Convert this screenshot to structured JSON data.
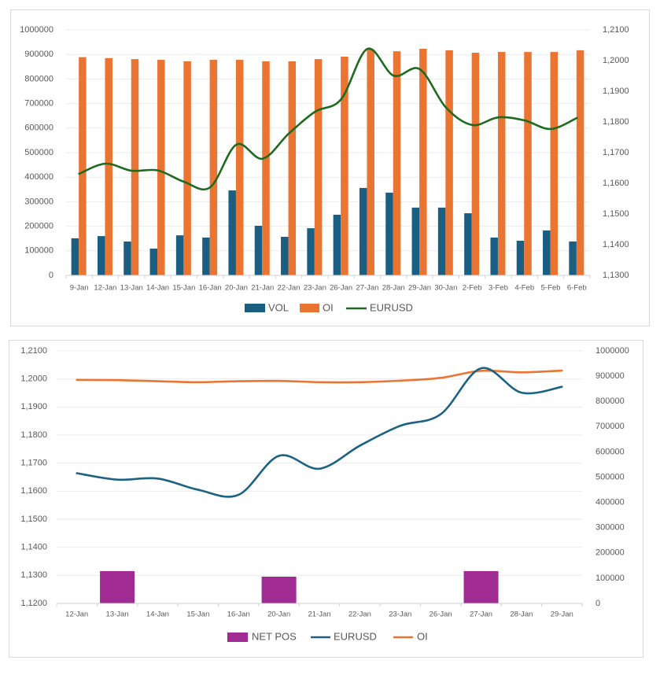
{
  "colors": {
    "vol": "#1a5f82",
    "oi": "#ea7431",
    "eurusd_top": "#1e6b20",
    "eurusd_bottom": "#1b6283",
    "net_pos": "#a02b92",
    "grid": "#ebebeb",
    "axis_text": "#595959",
    "panel_border": "#d9d9d9"
  },
  "chart_data": [
    {
      "type": "bar+line",
      "title": "",
      "grid": true,
      "legend_placement": "bottom",
      "categories": [
        "9-Jan",
        "12-Jan",
        "13-Jan",
        "14-Jan",
        "15-Jan",
        "16-Jan",
        "20-Jan",
        "21-Jan",
        "22-Jan",
        "23-Jan",
        "26-Jan",
        "27-Jan",
        "28-Jan",
        "29-Jan",
        "30-Jan",
        "2-Feb",
        "3-Feb",
        "4-Feb",
        "5-Feb",
        "6-Feb"
      ],
      "y_left": {
        "range": [
          0,
          1000000
        ],
        "ticks": [
          "0",
          "100000",
          "200000",
          "300000",
          "400000",
          "500000",
          "600000",
          "700000",
          "800000",
          "900000",
          "1000000"
        ]
      },
      "y_right": {
        "range": [
          1.13,
          1.21
        ],
        "ticks": [
          "1,1300",
          "1,1400",
          "1,1500",
          "1,1600",
          "1,1700",
          "1,1800",
          "1,1900",
          "1,2000",
          "1,2100"
        ]
      },
      "series": [
        {
          "name": "VOL",
          "type": "bar",
          "axis": "left",
          "values": [
            151000,
            160000,
            138000,
            109000,
            163000,
            154000,
            346000,
            202000,
            157000,
            192000,
            247000,
            356000,
            337000,
            276000,
            276000,
            253000,
            154000,
            141000,
            183000,
            138000
          ]
        },
        {
          "name": "OI",
          "type": "bar",
          "axis": "left",
          "values": [
            889000,
            885000,
            881000,
            878000,
            872000,
            878000,
            878000,
            872000,
            872000,
            881000,
            891000,
            921000,
            913000,
            923000,
            917000,
            907000,
            910000,
            910000,
            910000,
            917000
          ]
        },
        {
          "name": "EURUSD",
          "type": "line",
          "axis": "right",
          "values": [
            1.1631,
            1.1664,
            1.1641,
            1.1642,
            1.1605,
            1.1587,
            1.1726,
            1.168,
            1.1762,
            1.1833,
            1.1874,
            1.2038,
            1.1951,
            1.1972,
            1.1847,
            1.179,
            1.1815,
            1.1805,
            1.1777,
            1.1813
          ]
        }
      ]
    },
    {
      "type": "bar+line",
      "title": "",
      "grid": true,
      "legend_placement": "bottom",
      "categories": [
        "12-Jan",
        "13-Jan",
        "14-Jan",
        "15-Jan",
        "16-Jan",
        "20-Jan",
        "21-Jan",
        "22-Jan",
        "23-Jan",
        "26-Jan",
        "27-Jan",
        "28-Jan",
        "29-Jan"
      ],
      "y_left": {
        "range": [
          1.12,
          1.21
        ],
        "ticks": [
          "1,1200",
          "1,1300",
          "1,1400",
          "1,1500",
          "1,1600",
          "1,1700",
          "1,1800",
          "1,1900",
          "1,2000",
          "1,2100"
        ]
      },
      "y_right": {
        "range": [
          0,
          1000000
        ],
        "ticks": [
          "0",
          "100000",
          "200000",
          "300000",
          "400000",
          "500000",
          "600000",
          "700000",
          "800000",
          "900000",
          "1000000"
        ]
      },
      "series": [
        {
          "name": "NET POS",
          "type": "bar",
          "axis": "right",
          "values": [
            null,
            128000,
            null,
            null,
            null,
            106000,
            null,
            null,
            null,
            null,
            128000,
            null,
            null
          ]
        },
        {
          "name": "EURUSD",
          "type": "line",
          "axis": "left",
          "values": [
            1.1664,
            1.1641,
            1.1645,
            1.1605,
            1.1587,
            1.1726,
            1.168,
            1.1762,
            1.1833,
            1.1874,
            1.2038,
            1.1951,
            1.1972
          ]
        },
        {
          "name": "OI",
          "type": "line",
          "axis": "right",
          "values": [
            885000,
            884000,
            880000,
            876000,
            880000,
            881000,
            876000,
            876000,
            882000,
            893000,
            921000,
            915000,
            922000
          ]
        }
      ]
    }
  ]
}
